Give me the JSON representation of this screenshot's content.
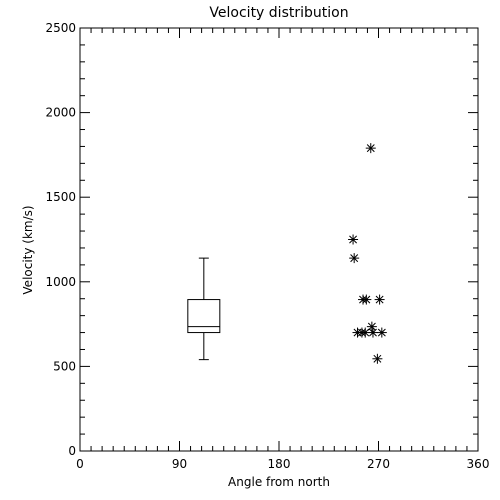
{
  "chart_data": {
    "type": "scatter",
    "title": "Velocity distribution",
    "xlabel": "Angle from north",
    "ylabel": "Velocity (km/s)",
    "xlim": [
      0,
      360
    ],
    "ylim": [
      0,
      2500
    ],
    "x_ticks": [
      0,
      90,
      180,
      270,
      360
    ],
    "y_ticks": [
      0,
      500,
      1000,
      1500,
      2000,
      2500
    ],
    "grid": false,
    "box": {
      "x": 112,
      "whisker_low": 540,
      "q1": 700,
      "median": 735,
      "q3": 895,
      "whisker_high": 1140
    },
    "points": [
      {
        "x": 263,
        "y": 1790
      },
      {
        "x": 247,
        "y": 1250
      },
      {
        "x": 248,
        "y": 1140
      },
      {
        "x": 256,
        "y": 895
      },
      {
        "x": 259,
        "y": 895
      },
      {
        "x": 271,
        "y": 895
      },
      {
        "x": 264,
        "y": 735
      },
      {
        "x": 251,
        "y": 700
      },
      {
        "x": 255,
        "y": 700
      },
      {
        "x": 258,
        "y": 700
      },
      {
        "x": 265,
        "y": 700
      },
      {
        "x": 273,
        "y": 700
      },
      {
        "x": 269,
        "y": 545
      }
    ]
  }
}
